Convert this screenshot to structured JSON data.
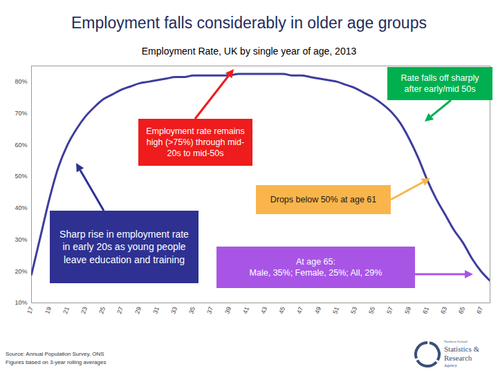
{
  "chart_data": {
    "type": "line",
    "title": "Employment falls considerably in older age groups",
    "subtitle": "Employment Rate, UK by single year of age, 2013",
    "x": [
      17,
      18,
      19,
      20,
      21,
      22,
      23,
      24,
      25,
      26,
      27,
      28,
      29,
      30,
      31,
      32,
      33,
      34,
      35,
      36,
      37,
      38,
      39,
      40,
      41,
      42,
      43,
      44,
      45,
      46,
      47,
      48,
      49,
      50,
      51,
      52,
      53,
      54,
      55,
      56,
      57,
      58,
      59,
      60,
      61,
      62,
      63,
      64,
      65,
      66,
      67,
      68
    ],
    "values": [
      19,
      31,
      43,
      53,
      60,
      65,
      69,
      72,
      74.5,
      76,
      77.5,
      78.5,
      79.5,
      80,
      80.5,
      81,
      81.5,
      81.5,
      82,
      82,
      82,
      82,
      82,
      82.5,
      82.5,
      82.5,
      82.5,
      82.5,
      82.5,
      82,
      82,
      81.5,
      81,
      80.5,
      80,
      79,
      78,
      76.5,
      75,
      73,
      70.5,
      67,
      62,
      56,
      49,
      43,
      38,
      33,
      29,
      24,
      20,
      17
    ],
    "color": "#3d3d9e",
    "xlim": [
      17,
      68
    ],
    "xticks": [
      17,
      19,
      21,
      23,
      25,
      27,
      29,
      31,
      33,
      35,
      37,
      39,
      41,
      43,
      45,
      47,
      49,
      51,
      53,
      55,
      57,
      59,
      61,
      63,
      65,
      67
    ],
    "ylim": [
      10,
      85
    ],
    "yticks": [
      {
        "value": 10,
        "label": "10%"
      },
      {
        "value": 20,
        "label": "20%"
      },
      {
        "value": 30,
        "label": "30%"
      },
      {
        "value": 40,
        "label": "40%"
      },
      {
        "value": 50,
        "label": "50%"
      },
      {
        "value": 60,
        "label": "60%"
      },
      {
        "value": 70,
        "label": "70%"
      },
      {
        "value": 80,
        "label": "80%"
      }
    ],
    "grid": false,
    "annotations": [
      {
        "text": "Employment rate remains high (>75%) through mid-20s to mid-50s",
        "color": "#ee1c1c"
      },
      {
        "text": "Rate falls off sharply after early/mid 50s",
        "color": "#00b050"
      },
      {
        "text": "Drops below 50% at age 61",
        "color": "#f9b54c"
      },
      {
        "text": "Sharp rise in employment rate in early 20s as young people leave education and training",
        "color": "#2e3192"
      },
      {
        "text": "At age 65:\nMale, 35%; Female, 25%; All, 29%",
        "color": "#a855e6"
      }
    ],
    "source": [
      "Source: Annual Population Survey, ONS",
      "Figures based on 3-year rolling averages"
    ],
    "logo": [
      "Northern Ireland",
      "Statistics &",
      "Research",
      "Agency"
    ]
  }
}
